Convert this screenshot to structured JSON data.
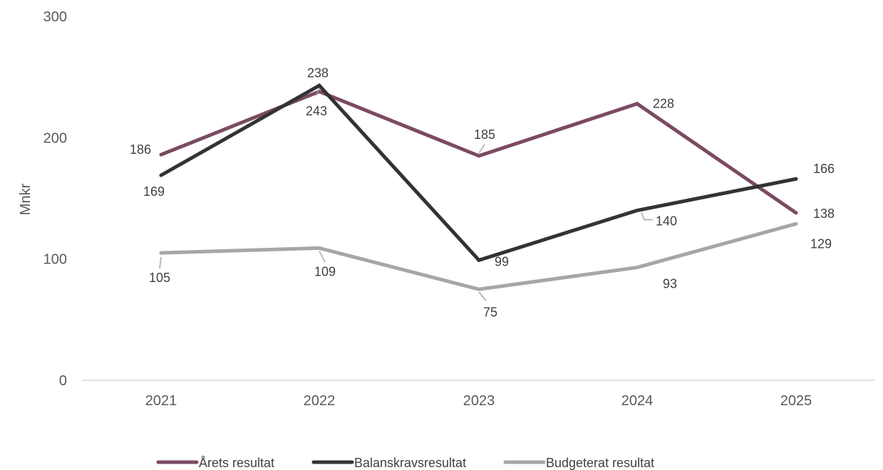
{
  "chart_data": {
    "type": "line",
    "categories": [
      "2021",
      "2022",
      "2023",
      "2024",
      "2025"
    ],
    "ylabel": "Mnkr",
    "ylim": [
      0,
      300
    ],
    "yticks": [
      0,
      100,
      200,
      300
    ],
    "grid": false,
    "legend_position": "bottom",
    "series": [
      {
        "name": "Årets resultat",
        "values": [
          186,
          238,
          185,
          228,
          138
        ],
        "color": "#7b4a62"
      },
      {
        "name": "Balanskravsresultat",
        "values": [
          169,
          243,
          99,
          140,
          166
        ],
        "color": "#333333"
      },
      {
        "name": "Budgeterat resultat",
        "values": [
          105,
          109,
          75,
          93,
          129
        ],
        "color": "#a6a6a6"
      }
    ]
  }
}
